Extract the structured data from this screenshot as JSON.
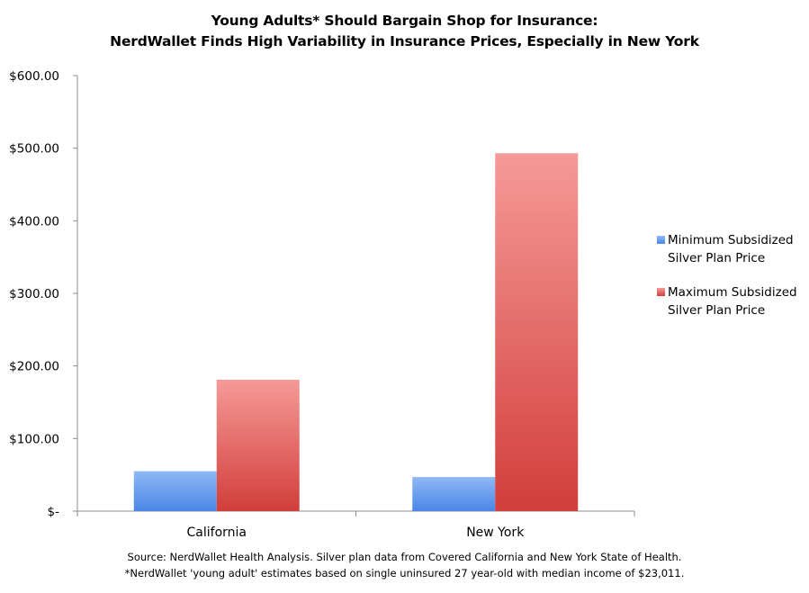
{
  "chart_data": {
    "type": "bar",
    "title": "Young Adults* Should Bargain Shop for Insurance:",
    "subtitle": "NerdWallet Finds High Variability in Insurance Prices, Especially in New York",
    "categories": [
      "California",
      "New York"
    ],
    "series": [
      {
        "name": "Minimum Subsidized Silver Plan Price",
        "values": [
          55,
          47
        ],
        "color": "#4a86e8"
      },
      {
        "name": "Maximum Subsidized Silver Plan Price",
        "values": [
          181,
          493
        ],
        "color": "#e0504c"
      }
    ],
    "ylim": [
      0,
      600
    ],
    "yticks": [
      0,
      100,
      200,
      300,
      400,
      500,
      600
    ],
    "ytick_labels": [
      "$-",
      "$100.00",
      "$200.00",
      "$300.00",
      "$400.00",
      "$500.00",
      "$600.00"
    ],
    "legend_position": "right",
    "grid": false
  },
  "legend": {
    "min_line1": "Minimum Subsidized",
    "min_line2": "Silver Plan Price",
    "max_line1": "Maximum Subsidized",
    "max_line2": "Silver Plan Price"
  },
  "source": {
    "line1": "Source: NerdWallet Health Analysis. Silver plan data from Covered California and New York State of Health.",
    "line2": "*NerdWallet 'young adult' estimates based on single uninsured 27 year-old with median income of $23,011."
  }
}
